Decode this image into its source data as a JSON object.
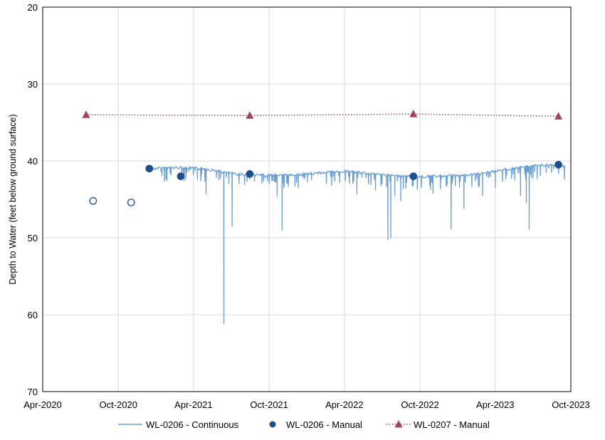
{
  "chart_data": {
    "type": "line",
    "title": "",
    "xlabel": "",
    "ylabel": "Depth to Water (feet below ground surface)",
    "y_inverted": true,
    "ylim": [
      20,
      70
    ],
    "yticks": [
      20,
      30,
      40,
      50,
      60,
      70
    ],
    "xlim": [
      "2020-04-01",
      "2023-10-01"
    ],
    "xtick_labels": [
      "Apr-2020",
      "Oct-2020",
      "Apr-2021",
      "Oct-2021",
      "Apr-2022",
      "Oct-2022",
      "Apr-2023",
      "Oct-2023"
    ],
    "grid": true,
    "legend_position": "bottom",
    "colors": {
      "continuous": "#6a9fd4",
      "manual_0206": "#1f4e8c",
      "manual_0207": "#a04456"
    },
    "series": [
      {
        "name": "WL-0206 - Continuous",
        "style": "line",
        "baseline": [
          [
            "2020-12-15",
            41.3
          ],
          [
            "2021-01-01",
            40.9
          ],
          [
            "2021-03-01",
            40.8
          ],
          [
            "2021-05-01",
            41.0
          ],
          [
            "2021-06-01",
            41.3
          ],
          [
            "2021-07-01",
            41.6
          ],
          [
            "2021-09-01",
            41.8
          ],
          [
            "2021-12-01",
            41.8
          ],
          [
            "2022-02-01",
            41.5
          ],
          [
            "2022-04-01",
            41.3
          ],
          [
            "2022-06-01",
            41.6
          ],
          [
            "2022-08-01",
            41.9
          ],
          [
            "2022-10-01",
            42.0
          ],
          [
            "2022-12-01",
            41.9
          ],
          [
            "2023-02-01",
            41.8
          ],
          [
            "2023-04-01",
            41.3
          ],
          [
            "2023-06-01",
            40.8
          ],
          [
            "2023-08-01",
            40.5
          ],
          [
            "2023-09-15",
            40.6
          ]
        ],
        "spikes": [
          [
            "2021-05-01",
            44.3
          ],
          [
            "2021-06-13",
            61.2
          ],
          [
            "2021-07-03",
            48.5
          ],
          [
            "2021-07-20",
            43.0
          ],
          [
            "2021-10-01",
            43.0
          ],
          [
            "2021-10-20",
            44.6
          ],
          [
            "2021-11-01",
            49.0
          ],
          [
            "2021-11-05",
            43.5
          ],
          [
            "2022-03-01",
            43.2
          ],
          [
            "2022-05-01",
            44.3
          ],
          [
            "2022-06-15",
            43.8
          ],
          [
            "2022-07-01",
            43.0
          ],
          [
            "2022-07-15",
            50.2
          ],
          [
            "2022-07-22",
            50.0
          ],
          [
            "2022-08-01",
            44.5
          ],
          [
            "2022-08-15",
            45.2
          ],
          [
            "2022-11-01",
            44.2
          ],
          [
            "2022-12-15",
            48.9
          ],
          [
            "2023-01-15",
            46.2
          ],
          [
            "2023-03-01",
            44.5
          ],
          [
            "2023-04-01",
            43.5
          ],
          [
            "2023-06-01",
            44.5
          ],
          [
            "2023-06-15",
            45.5
          ],
          [
            "2023-06-22",
            48.9
          ],
          [
            "2023-08-15",
            41.5
          ]
        ]
      },
      {
        "name": "WL-0206 - Manual",
        "style": "marker-circle",
        "points": [
          {
            "x": "2020-08-01",
            "y": 45.2,
            "filled": false
          },
          {
            "x": "2020-11-01",
            "y": 45.4,
            "filled": false
          },
          {
            "x": "2020-12-15",
            "y": 41.0,
            "filled": true
          },
          {
            "x": "2021-03-01",
            "y": 42.0,
            "filled": true
          },
          {
            "x": "2021-08-15",
            "y": 41.7,
            "filled": true
          },
          {
            "x": "2022-09-15",
            "y": 42.0,
            "filled": true
          },
          {
            "x": "2023-09-01",
            "y": 40.5,
            "filled": true
          }
        ]
      },
      {
        "name": "WL-0207 - Manual",
        "style": "dotted-line-triangle",
        "points": [
          {
            "x": "2020-07-15",
            "y": 34.0
          },
          {
            "x": "2021-08-15",
            "y": 34.1
          },
          {
            "x": "2022-09-15",
            "y": 33.9
          },
          {
            "x": "2023-09-01",
            "y": 34.2
          }
        ]
      }
    ]
  }
}
